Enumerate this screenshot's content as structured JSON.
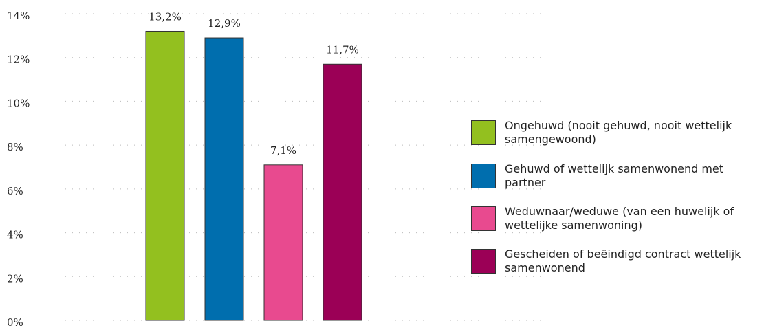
{
  "chart_data": {
    "type": "bar",
    "categories": [
      "Ongehuwd (nooit gehuwd, nooit wettelijk samengewoond)",
      "Gehuwd of wettelijk samenwonend met partner",
      "Weduwnaar/weduwe (van een huwelijk of wettelijke samenwoning)",
      "Gescheiden of beëindigd contract wettelijk samenwonend"
    ],
    "values": [
      13.2,
      12.9,
      7.1,
      11.7
    ],
    "value_labels": [
      "13,2%",
      "12,9%",
      "7,1%",
      "11,7%"
    ],
    "colors": [
      "#93c01f",
      "#006eae",
      "#e84a8f",
      "#9b0056"
    ],
    "ylim": [
      0,
      14
    ],
    "yticks": [
      {
        "value": 0,
        "label": "0%"
      },
      {
        "value": 2,
        "label": "2%"
      },
      {
        "value": 4,
        "label": "4%"
      },
      {
        "value": 6,
        "label": "6%"
      },
      {
        "value": 8,
        "label": "8%"
      },
      {
        "value": 10,
        "label": "10%"
      },
      {
        "value": 12,
        "label": "12%"
      },
      {
        "value": 14,
        "label": "14%"
      }
    ],
    "grid": true
  }
}
